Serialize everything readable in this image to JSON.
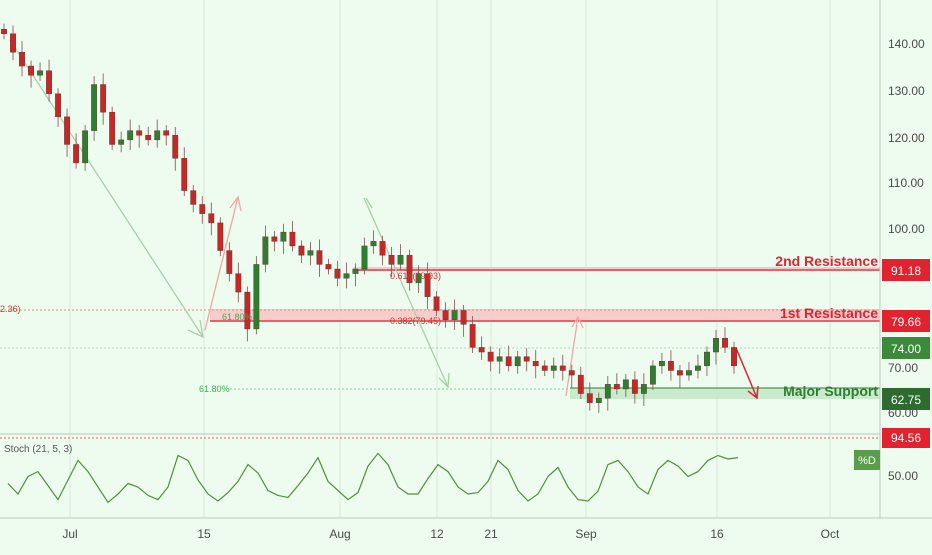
{
  "chart_data": {
    "type": "candlestick",
    "symbol_timeframe": "",
    "price_axis": {
      "ticks": [
        "140.00",
        "130.00",
        "120.00",
        "110.00",
        "100.00",
        "70.00",
        "60.00"
      ],
      "tick_values": [
        140,
        130,
        120,
        110,
        100,
        70,
        60
      ]
    },
    "time_axis": {
      "ticks": [
        "Jul",
        "15",
        "Aug",
        "12",
        "21",
        "Sep",
        "16",
        "Oct"
      ]
    },
    "levels": [
      {
        "name": "2nd Resistance",
        "price": 91.18,
        "tag": "91.18",
        "color": "#e0232f"
      },
      {
        "name": "1st Resistance",
        "price": 79.66,
        "tag": "79.66",
        "color": "#e0232f"
      },
      {
        "name": "Major Support",
        "price": 62.75,
        "tag": "62.75",
        "color": "#2e7d32"
      }
    ],
    "last_price": {
      "tag": "74.00",
      "color": "#3a8a3a"
    },
    "fib_labels": [
      {
        "text": "61.80%",
        "color": "#3aaa55"
      },
      {
        "text": "0.618(89.93)",
        "color": "#d32f2f"
      },
      {
        "text": "0.382(79.45)",
        "color": "#d32f2f"
      },
      {
        "text": "61.80%",
        "color": "#3aaa55"
      },
      {
        "text": "2.36)",
        "color": "#d32f2f"
      }
    ],
    "close_series": [
      142,
      138,
      135,
      133,
      134,
      129,
      124,
      118,
      114,
      121,
      131,
      125,
      118,
      119,
      121,
      120,
      119,
      121,
      120,
      115,
      108,
      105,
      103,
      101,
      95,
      90,
      86,
      78,
      92,
      98,
      97,
      99,
      96,
      94,
      95,
      92,
      91,
      89,
      90,
      91,
      96,
      97,
      94,
      92,
      94,
      88,
      90,
      85,
      82,
      80,
      82,
      79,
      74,
      73,
      71,
      72,
      70,
      72,
      71,
      70,
      69,
      70,
      69,
      68,
      64,
      62,
      63,
      66,
      65,
      67,
      64,
      66,
      70,
      71,
      69,
      68,
      69,
      70,
      73,
      76,
      74,
      70
    ],
    "stoch": {
      "label": "Stoch (21, 5, 3)",
      "tag_value": "94.56",
      "tick": "50.00",
      "legend": "%D",
      "ylim": [
        0,
        100
      ],
      "values": [
        45,
        30,
        55,
        62,
        42,
        22,
        50,
        78,
        62,
        40,
        18,
        30,
        45,
        40,
        28,
        22,
        40,
        85,
        78,
        50,
        30,
        20,
        32,
        48,
        72,
        60,
        35,
        28,
        25,
        42,
        60,
        82,
        48,
        35,
        22,
        32,
        70,
        88,
        72,
        40,
        30,
        30,
        52,
        72,
        62,
        40,
        30,
        32,
        48,
        78,
        65,
        35,
        20,
        30,
        55,
        68,
        40,
        22,
        20,
        34,
        72,
        78,
        62,
        40,
        30,
        65,
        78,
        70,
        55,
        62,
        78,
        85,
        80,
        82
      ],
      "color": "#4f8f3a"
    }
  }
}
